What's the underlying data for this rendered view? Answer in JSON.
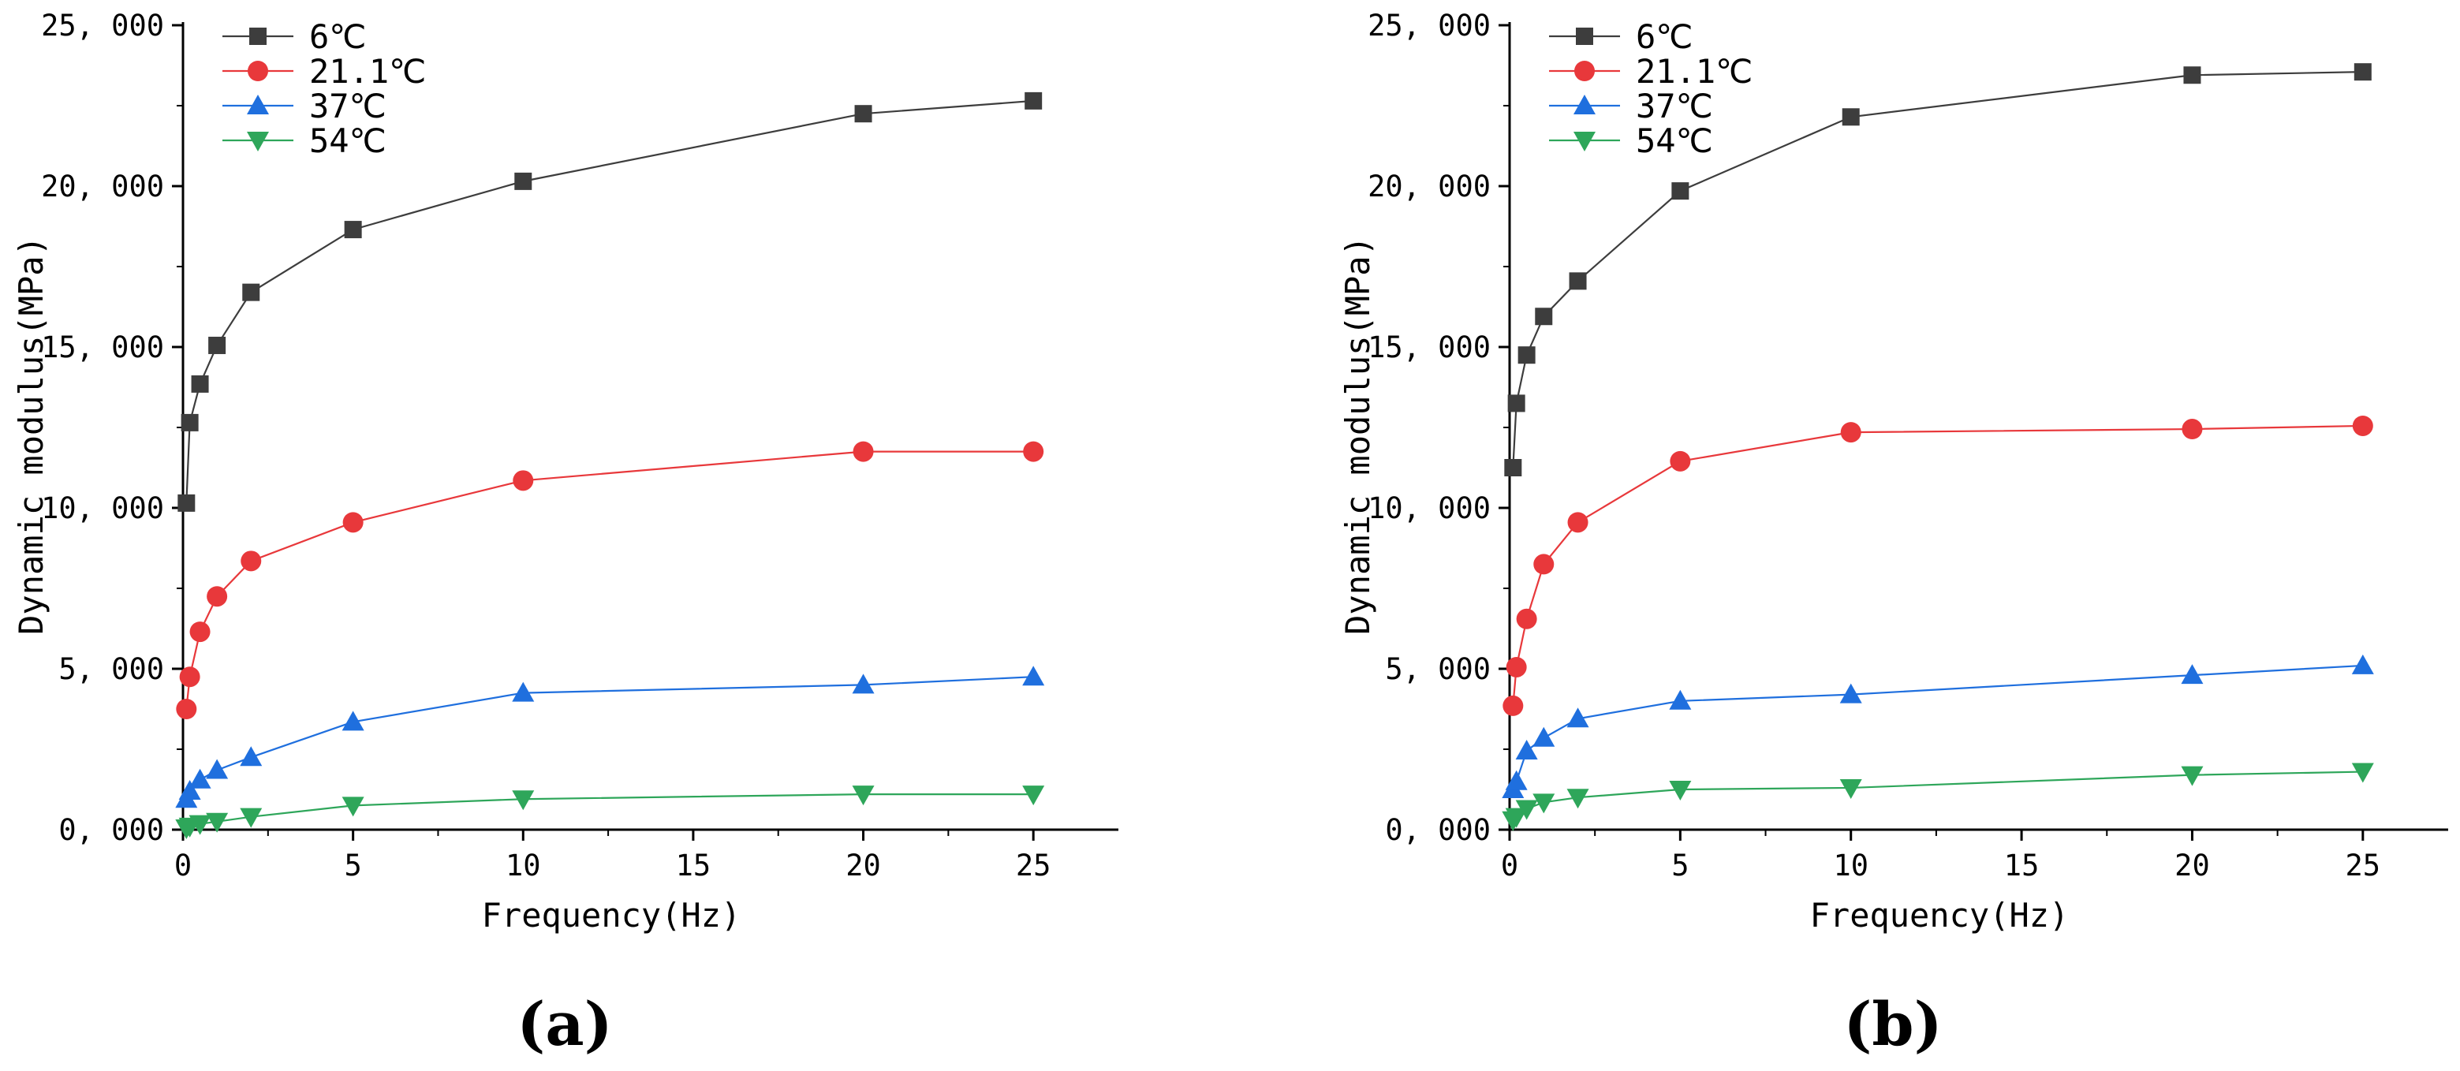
{
  "chart_data": [
    {
      "type": "line",
      "panel_label": "(a)",
      "xlabel": "Frequency(Hz)",
      "ylabel": "Dynamic modulus(MPa)",
      "xlim": [
        0,
        27.5
      ],
      "ylim": [
        0,
        25000
      ],
      "xticks": [
        0,
        5,
        10,
        15,
        20,
        25
      ],
      "xtick_labels": [
        "0",
        "5",
        "10",
        "15",
        "20",
        "25"
      ],
      "yticks": [
        0,
        5000,
        10000,
        15000,
        20000,
        25000
      ],
      "ytick_labels": [
        "0, 000",
        "5, 000",
        "10, 000",
        "15, 000",
        "20, 000",
        "25, 000"
      ],
      "legend_position": "top-left",
      "x": [
        0.1,
        0.2,
        0.5,
        1,
        2,
        5,
        10,
        20,
        25
      ],
      "series": [
        {
          "name": "6℃",
          "color": "#3d3d3d",
          "marker": "square",
          "values": [
            10150,
            12650,
            13850,
            15050,
            16700,
            18650,
            20150,
            22250,
            22650
          ]
        },
        {
          "name": "21.1℃",
          "color": "#e8383b",
          "marker": "circle",
          "values": [
            3750,
            4750,
            6150,
            7250,
            8350,
            9550,
            10850,
            11750,
            11750
          ]
        },
        {
          "name": "37℃",
          "color": "#1f6fde",
          "marker": "triangle-up",
          "values": [
            950,
            1200,
            1550,
            1850,
            2250,
            3350,
            4250,
            4500,
            4750
          ]
        },
        {
          "name": "54℃",
          "color": "#2ea65a",
          "marker": "triangle-down",
          "values": [
            50,
            100,
            180,
            250,
            400,
            750,
            950,
            1100,
            1100
          ]
        }
      ]
    },
    {
      "type": "line",
      "panel_label": "(b)",
      "xlabel": "Frequency(Hz)",
      "ylabel": "Dynamic modulus(MPa)",
      "xlim": [
        0,
        27.5
      ],
      "ylim": [
        0,
        25000
      ],
      "xticks": [
        0,
        5,
        10,
        15,
        20,
        25
      ],
      "xtick_labels": [
        "0",
        "5",
        "10",
        "15",
        "20",
        "25"
      ],
      "yticks": [
        0,
        5000,
        10000,
        15000,
        20000,
        25000
      ],
      "ytick_labels": [
        "0, 000",
        "5, 000",
        "10, 000",
        "15, 000",
        "20, 000",
        "25, 000"
      ],
      "legend_position": "top-left",
      "x": [
        0.1,
        0.2,
        0.5,
        1,
        2,
        5,
        10,
        20,
        25
      ],
      "series": [
        {
          "name": "6℃",
          "color": "#3d3d3d",
          "marker": "square",
          "values": [
            11250,
            13250,
            14750,
            15950,
            17050,
            19850,
            22150,
            23450,
            23550
          ]
        },
        {
          "name": "21.1℃",
          "color": "#e8383b",
          "marker": "circle",
          "values": [
            3850,
            5050,
            6550,
            8250,
            9550,
            11450,
            12350,
            12450,
            12550
          ]
        },
        {
          "name": "37℃",
          "color": "#1f6fde",
          "marker": "triangle-up",
          "values": [
            1250,
            1500,
            2450,
            2850,
            3450,
            4000,
            4200,
            4800,
            5100
          ]
        },
        {
          "name": "54℃",
          "color": "#2ea65a",
          "marker": "triangle-down",
          "values": [
            300,
            400,
            650,
            850,
            1000,
            1250,
            1300,
            1700,
            1800
          ]
        }
      ]
    }
  ]
}
